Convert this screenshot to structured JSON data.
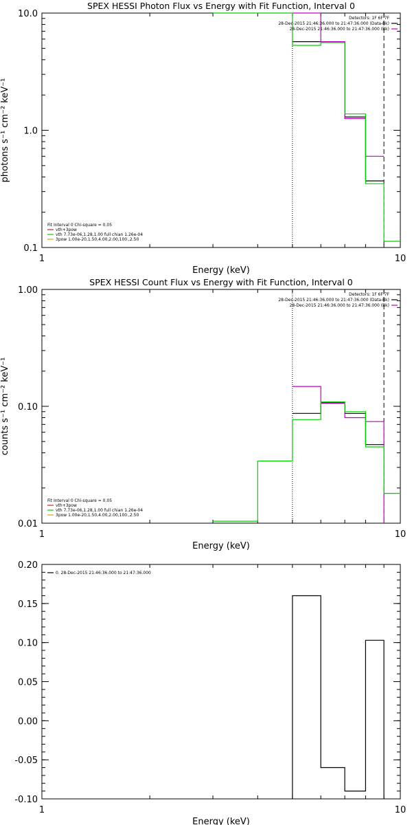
{
  "chart_data": [
    {
      "type": "line",
      "title": "SPEX HESSI Photon Flux vs Energy with Fit Function, Interval 0",
      "xlabel": "Energy (keV)",
      "ylabel": "photons s⁻¹ cm⁻² keV⁻¹",
      "xscale": "log",
      "yscale": "log",
      "xlim": [
        1,
        10
      ],
      "ylim": [
        0.1,
        10
      ],
      "x_ticks": [
        1,
        10
      ],
      "x_tick_labels": [
        "1",
        "10"
      ],
      "y_ticks": [
        0.1,
        1,
        10
      ],
      "y_tick_labels": [
        "0.1",
        "1.0",
        "10.0"
      ],
      "vlines": [
        {
          "x": 5.0,
          "style": "dotted",
          "color": "#000000"
        },
        {
          "x": 9.0,
          "style": "dashed",
          "color": "#000000"
        }
      ],
      "info": {
        "detectors": "Detectors: 1F 6F 7F",
        "lines": [
          {
            "text": "28-Dec-2015 21:46:36.000 to 21:47:36.000 (Data-Bk)",
            "color": "#000000"
          },
          {
            "text": "28-Dec-2015 21:46:36.000 to 21:47:36.000 (Bk)",
            "color": "#c000c0"
          }
        ]
      },
      "legend": {
        "header": "Fit Interval 0   Chi-square = 0.05",
        "entries": [
          {
            "text": "vth+3pow",
            "color": "#d02020"
          },
          {
            "text": "vth 7.73e-06,1.28,1.00  full chian 1.26e-04",
            "color": "#00d000"
          },
          {
            "text": "3pow 1.00e-20,1.50,4.00,2.00,100.,2.50",
            "color": "#e0a000"
          }
        ]
      },
      "series": [
        {
          "color": "#000000",
          "x": [
            5.0,
            6.0,
            6.0,
            7.0,
            7.0,
            8.0,
            8.0,
            9.0
          ],
          "y": [
            5.7,
            5.7,
            5.7,
            5.7,
            1.3,
            1.3,
            0.37,
            0.37
          ]
        },
        {
          "color": "#c000c0",
          "x": [
            5.0,
            6.0,
            6.0,
            7.0,
            7.0,
            8.0,
            8.0,
            9.0
          ],
          "y": [
            10.2,
            10.2,
            5.7,
            5.7,
            1.26,
            1.26,
            0.6,
            0.6
          ]
        },
        {
          "color": "#00d000",
          "x": [
            3.0,
            5.0,
            5.0,
            6.0,
            6.0,
            7.0,
            7.0,
            8.0,
            8.0,
            9.0,
            9.0,
            10.0
          ],
          "y": [
            10.0,
            10.0,
            5.3,
            5.3,
            5.6,
            5.6,
            1.38,
            1.38,
            0.35,
            0.35,
            0.113,
            0.113
          ]
        }
      ]
    },
    {
      "type": "line",
      "title": "SPEX HESSI Count Flux vs Energy with Fit Function, Interval 0",
      "xlabel": "Energy (keV)",
      "ylabel": "counts s⁻¹ cm⁻² keV⁻¹",
      "xscale": "log",
      "yscale": "log",
      "xlim": [
        1,
        10
      ],
      "ylim": [
        0.01,
        1
      ],
      "x_ticks": [
        1,
        10
      ],
      "x_tick_labels": [
        "1",
        "10"
      ],
      "y_ticks": [
        0.01,
        0.1,
        1
      ],
      "y_tick_labels": [
        "0.01",
        "0.10",
        "1.00"
      ],
      "vlines": [
        {
          "x": 5.0,
          "style": "dotted",
          "color": "#000000"
        },
        {
          "x": 9.0,
          "style": "dashed",
          "color": "#000000"
        }
      ],
      "info": {
        "detectors": "Detectors: 1F 6F 7F",
        "lines": [
          {
            "text": "28-Dec-2015 21:46:36.000 to 21:47:36.000 (Data-Bk)",
            "color": "#000000"
          },
          {
            "text": "28-Dec-2015 21:46:36.000 to 21:47:36.000 (Bk)",
            "color": "#c000c0"
          }
        ]
      },
      "legend": {
        "header": "Fit Interval 0   Chi-square = 0.05",
        "entries": [
          {
            "text": "vth+3pow",
            "color": "#d02020"
          },
          {
            "text": "vth 7.73e-06,1.28,1.00  full chian 1.26e-04",
            "color": "#00d000"
          },
          {
            "text": "3pow 1.00e-20,1.50,4.00,2.00,100.,2.50",
            "color": "#e0a000"
          }
        ]
      },
      "series": [
        {
          "color": "#000000",
          "x": [
            5.0,
            6.0,
            6.0,
            7.0,
            7.0,
            8.0,
            8.0,
            9.0
          ],
          "y": [
            0.087,
            0.087,
            0.107,
            0.107,
            0.087,
            0.087,
            0.047,
            0.047
          ]
        },
        {
          "color": "#c000c0",
          "x": [
            5.0,
            6.0,
            6.0,
            7.0,
            7.0,
            8.0,
            8.0,
            9.0,
            9.0
          ],
          "y": [
            0.148,
            0.148,
            0.106,
            0.106,
            0.08,
            0.08,
            0.074,
            0.074,
            0.01
          ]
        },
        {
          "color": "#00d000",
          "x": [
            3.0,
            4.0,
            4.0,
            5.0,
            5.0,
            6.0,
            6.0,
            7.0,
            7.0,
            8.0,
            8.0,
            9.0,
            9.0,
            10.0
          ],
          "y": [
            0.0104,
            0.0104,
            0.034,
            0.034,
            0.077,
            0.077,
            0.109,
            0.109,
            0.09,
            0.09,
            0.045,
            0.045,
            0.018,
            0.018
          ]
        }
      ]
    },
    {
      "type": "line",
      "title": "",
      "xlabel": "Energy (keV)",
      "ylabel": "",
      "xscale": "log",
      "yscale": "linear",
      "xlim": [
        1,
        10
      ],
      "ylim": [
        -0.1,
        0.2
      ],
      "x_ticks": [
        1,
        10
      ],
      "x_tick_labels": [
        "1",
        "10"
      ],
      "y_ticks": [
        -0.1,
        -0.05,
        0,
        0.05,
        0.1,
        0.15,
        0.2
      ],
      "y_tick_labels": [
        "-0.10",
        "-0.05",
        "0.00",
        "0.05",
        "0.10",
        "0.15",
        "0.20"
      ],
      "vlines": [],
      "legend": {
        "header": "",
        "entries": [
          {
            "text": "0. 28-Dec-2015 21:46:36.000 to 21:47:36.000",
            "color": "#000000"
          }
        ]
      },
      "series": [
        {
          "color": "#000000",
          "x": [
            5.0,
            5.0,
            6.0,
            6.0,
            7.0,
            7.0,
            8.0,
            8.0,
            9.0,
            9.0
          ],
          "y": [
            -0.1,
            0.16,
            0.16,
            -0.06,
            -0.06,
            -0.09,
            -0.09,
            0.103,
            0.103,
            -0.1
          ]
        }
      ]
    }
  ]
}
